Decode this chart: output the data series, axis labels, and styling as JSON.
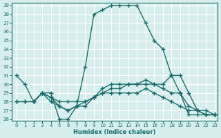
{
  "xlabel": "Humidex (Indice chaleur)",
  "background_color": "#d7eeee",
  "grid_color": "#ffffff",
  "line_color": "#1a6b6b",
  "xlim": [
    -0.5,
    23.3
  ],
  "ylim": [
    25.8,
    39.3
  ],
  "xticks": [
    0,
    1,
    2,
    3,
    4,
    5,
    6,
    7,
    8,
    9,
    10,
    11,
    12,
    13,
    14,
    15,
    16,
    17,
    18,
    19,
    20,
    21,
    22,
    23
  ],
  "yticks": [
    26,
    27,
    28,
    29,
    30,
    31,
    32,
    33,
    34,
    35,
    36,
    37,
    38,
    39
  ],
  "lines": [
    {
      "x": [
        0,
        1,
        2,
        3,
        4,
        5,
        6,
        7,
        8,
        9,
        10,
        11,
        12,
        13,
        14,
        15,
        16,
        17,
        18,
        19,
        20,
        21,
        22,
        23
      ],
      "y": [
        31,
        30,
        28,
        29,
        29,
        26,
        26,
        27.5,
        32,
        38,
        38.5,
        39,
        39,
        39,
        39,
        37,
        35,
        34,
        31,
        29,
        26.5,
        26.5,
        26.5,
        26.5
      ]
    },
    {
      "x": [
        0,
        1,
        2,
        3,
        4,
        5,
        6,
        7,
        8,
        9,
        10,
        11,
        12,
        13,
        14,
        15,
        16,
        17,
        18,
        19,
        20,
        21,
        22,
        23
      ],
      "y": [
        28,
        28,
        28,
        29,
        28,
        27.5,
        27,
        27.5,
        28,
        28.5,
        29,
        29.5,
        29.5,
        30,
        30,
        30,
        30,
        30,
        31,
        31,
        29,
        27,
        27,
        26.5
      ]
    },
    {
      "x": [
        0,
        1,
        2,
        3,
        4,
        5,
        6,
        7,
        8,
        9,
        10,
        11,
        12,
        13,
        14,
        15,
        16,
        17,
        18,
        19,
        20,
        21,
        22,
        23
      ],
      "y": [
        28,
        28,
        28,
        29,
        28.5,
        28,
        28,
        28,
        28,
        28.5,
        29,
        29,
        29,
        29,
        29,
        29.5,
        29,
        28.5,
        28,
        27.5,
        27,
        27,
        26.5,
        26.5
      ]
    },
    {
      "x": [
        2,
        3,
        4,
        5,
        6,
        7,
        8,
        9,
        10,
        11,
        12,
        13,
        14,
        15,
        16,
        17,
        18,
        19,
        20,
        21,
        22,
        23
      ],
      "y": [
        28,
        29,
        28.5,
        27.5,
        27,
        27.5,
        27.5,
        28.5,
        29.5,
        30,
        30,
        30,
        30,
        30.5,
        30,
        29.5,
        29,
        29,
        27.5,
        27,
        26.5,
        26.5
      ]
    }
  ]
}
